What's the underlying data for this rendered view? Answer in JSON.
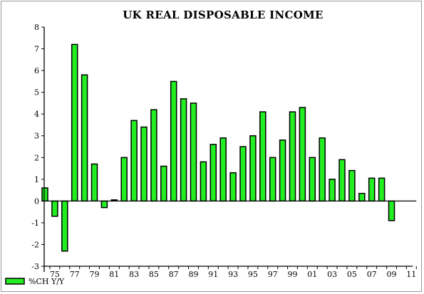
{
  "chart_data": {
    "type": "bar",
    "title": "UK REAL DISPOSABLE INCOME",
    "xlabel": "",
    "ylabel": "",
    "ylim": [
      -3,
      8
    ],
    "yticks": [
      8,
      7,
      6,
      5,
      4,
      3,
      2,
      1,
      0,
      -1,
      -2,
      -3
    ],
    "ytick_labels": [
      "8",
      "7",
      "6",
      "5",
      "4",
      "3",
      "2",
      "1",
      "0",
      "-1",
      "-2",
      "-3"
    ],
    "years": [
      1974,
      1975,
      1976,
      1977,
      1978,
      1979,
      1980,
      1981,
      1982,
      1983,
      1984,
      1985,
      1986,
      1987,
      1988,
      1989,
      1990,
      1991,
      1992,
      1993,
      1994,
      1995,
      1996,
      1997,
      1998,
      1999,
      2000,
      2001,
      2002,
      2003,
      2004,
      2005,
      2006,
      2007,
      2008,
      2009,
      2010,
      2011
    ],
    "values": [
      0.6,
      -0.7,
      -2.3,
      7.2,
      5.8,
      1.7,
      -0.3,
      0.05,
      2.0,
      3.7,
      3.4,
      4.2,
      1.6,
      5.5,
      4.7,
      4.5,
      1.8,
      2.6,
      2.9,
      1.3,
      2.5,
      3.0,
      4.1,
      2.0,
      2.8,
      4.1,
      4.3,
      2.0,
      2.9,
      1.0,
      1.9,
      1.4,
      0.35,
      1.05,
      1.05,
      -0.9,
      null,
      null
    ],
    "xtick_labels": [
      {
        "year": 1975,
        "label": "75"
      },
      {
        "year": 1977,
        "label": "77"
      },
      {
        "year": 1979,
        "label": "79"
      },
      {
        "year": 1981,
        "label": "81"
      },
      {
        "year": 1983,
        "label": "83"
      },
      {
        "year": 1985,
        "label": "85"
      },
      {
        "year": 1987,
        "label": "87"
      },
      {
        "year": 1989,
        "label": "89"
      },
      {
        "year": 1991,
        "label": "91"
      },
      {
        "year": 1993,
        "label": "93"
      },
      {
        "year": 1995,
        "label": "95"
      },
      {
        "year": 1997,
        "label": "97"
      },
      {
        "year": 1999,
        "label": "99"
      },
      {
        "year": 2001,
        "label": "01"
      },
      {
        "year": 2003,
        "label": "03"
      },
      {
        "year": 2005,
        "label": "05"
      },
      {
        "year": 2007,
        "label": "07"
      },
      {
        "year": 2009,
        "label": "09"
      },
      {
        "year": 2011,
        "label": "11"
      }
    ],
    "series": [
      {
        "name": "%CH Y/Y",
        "color": "#22ee22"
      }
    ],
    "legend": "bottom-left",
    "grid": false,
    "bar_color": "#22ee22",
    "bar_edge_color": "#000000"
  }
}
